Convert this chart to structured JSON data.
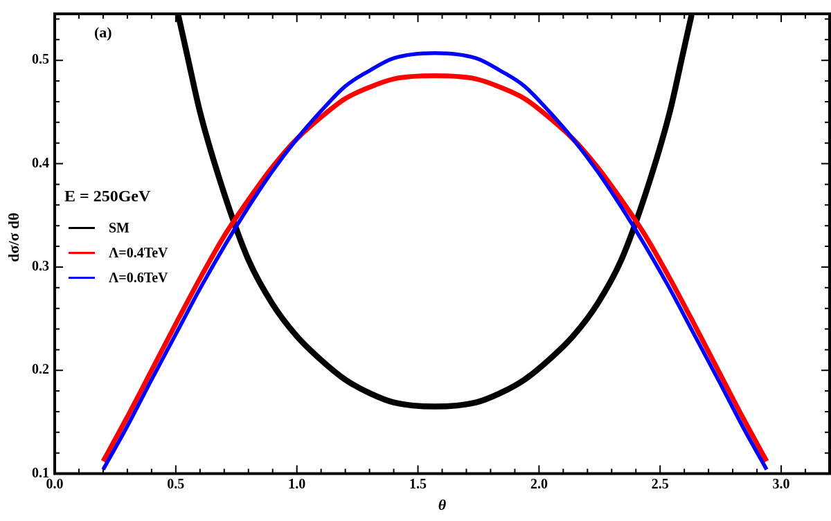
{
  "chart_data": {
    "type": "line",
    "xlabel": "θ",
    "ylabel": "dσ/σ dθ",
    "legend_title": "E = 250GeV",
    "legend": "left",
    "annotations": [
      "(a)"
    ],
    "xlim": [
      0,
      3.2
    ],
    "ylim": [
      0.1,
      0.545
    ],
    "xticks": [
      {
        "value": 0,
        "label": "0.0"
      },
      {
        "value": 0.1,
        "label": null
      },
      {
        "value": 0.2,
        "label": null
      },
      {
        "value": 0.3,
        "label": null
      },
      {
        "value": 0.4,
        "label": null
      },
      {
        "value": 0.5,
        "label": "0.5"
      },
      {
        "value": 0.6,
        "label": null
      },
      {
        "value": 0.7,
        "label": null
      },
      {
        "value": 0.8,
        "label": null
      },
      {
        "value": 0.9,
        "label": null
      },
      {
        "value": 1,
        "label": "1.0"
      },
      {
        "value": 1.1,
        "label": null
      },
      {
        "value": 1.2,
        "label": null
      },
      {
        "value": 1.3,
        "label": null
      },
      {
        "value": 1.4,
        "label": null
      },
      {
        "value": 1.5,
        "label": "1.5"
      },
      {
        "value": 1.6,
        "label": null
      },
      {
        "value": 1.7,
        "label": null
      },
      {
        "value": 1.8,
        "label": null
      },
      {
        "value": 1.9,
        "label": null
      },
      {
        "value": 2,
        "label": "2.0"
      },
      {
        "value": 2.1,
        "label": null
      },
      {
        "value": 2.2,
        "label": null
      },
      {
        "value": 2.3,
        "label": null
      },
      {
        "value": 2.4,
        "label": null
      },
      {
        "value": 2.5,
        "label": "2.5"
      },
      {
        "value": 2.6,
        "label": null
      },
      {
        "value": 2.7,
        "label": null
      },
      {
        "value": 2.8,
        "label": null
      },
      {
        "value": 2.9,
        "label": null
      },
      {
        "value": 3,
        "label": "3.0"
      },
      {
        "value": 3.1,
        "label": null
      }
    ],
    "yticks": [
      0.1,
      {
        "value": 0.12,
        "label": null
      },
      {
        "value": 0.14,
        "label": null
      },
      {
        "value": 0.16,
        "label": null
      },
      {
        "value": 0.18,
        "label": null
      },
      0.2,
      {
        "value": 0.22,
        "label": null
      },
      {
        "value": 0.24,
        "label": null
      },
      {
        "value": 0.26,
        "label": null
      },
      {
        "value": 0.28,
        "label": null
      },
      0.3,
      {
        "value": 0.32,
        "label": null
      },
      {
        "value": 0.34,
        "label": null
      },
      {
        "value": 0.36,
        "label": null
      },
      {
        "value": 0.38,
        "label": null
      },
      0.4,
      {
        "value": 0.42,
        "label": null
      },
      {
        "value": 0.44,
        "label": null
      },
      {
        "value": 0.46,
        "label": null
      },
      {
        "value": 0.48,
        "label": null
      },
      0.5,
      {
        "value": 0.52,
        "label": null
      },
      {
        "value": 0.54,
        "label": null
      }
    ],
    "marker": "none",
    "line_style": "solid",
    "series": [
      {
        "name": "SM",
        "color": "#000000",
        "x": [
          0.51,
          0.55,
          0.6,
          0.7,
          0.8,
          0.9,
          1.0,
          1.1,
          1.2,
          1.3,
          1.4,
          1.57,
          1.74,
          1.84,
          1.94,
          2.04,
          2.14,
          2.24,
          2.34,
          2.44,
          2.54,
          2.59,
          2.63
        ],
        "values": [
          0.544,
          0.502,
          0.45,
          0.371,
          0.307,
          0.264,
          0.233,
          0.21,
          0.191,
          0.178,
          0.169,
          0.165,
          0.169,
          0.178,
          0.191,
          0.21,
          0.233,
          0.264,
          0.307,
          0.371,
          0.45,
          0.502,
          0.544
        ]
      },
      {
        "name": "Λ=0.4TeV",
        "color": "#ff0000",
        "x": [
          0.2,
          0.3,
          0.4,
          0.5,
          0.6,
          0.7,
          0.8,
          0.9,
          1.0,
          1.1,
          1.2,
          1.3,
          1.4,
          1.57,
          1.74,
          1.84,
          1.94,
          2.04,
          2.14,
          2.24,
          2.34,
          2.44,
          2.54,
          2.64,
          2.74,
          2.84,
          2.94
        ],
        "values": [
          0.112,
          0.155,
          0.2,
          0.245,
          0.289,
          0.33,
          0.365,
          0.397,
          0.424,
          0.445,
          0.463,
          0.474,
          0.482,
          0.485,
          0.482,
          0.474,
          0.463,
          0.445,
          0.424,
          0.397,
          0.365,
          0.33,
          0.289,
          0.245,
          0.2,
          0.155,
          0.112
        ]
      },
      {
        "name": "Λ=0.6TeV",
        "color": "#0000ff",
        "x": [
          0.2,
          0.3,
          0.4,
          0.5,
          0.6,
          0.7,
          0.8,
          0.9,
          1.0,
          1.1,
          1.2,
          1.3,
          1.4,
          1.57,
          1.74,
          1.84,
          1.94,
          2.04,
          2.14,
          2.24,
          2.34,
          2.44,
          2.54,
          2.64,
          2.74,
          2.84,
          2.94
        ],
        "values": [
          0.104,
          0.146,
          0.191,
          0.235,
          0.279,
          0.32,
          0.358,
          0.393,
          0.424,
          0.451,
          0.475,
          0.49,
          0.502,
          0.507,
          0.502,
          0.49,
          0.475,
          0.451,
          0.424,
          0.393,
          0.358,
          0.32,
          0.279,
          0.235,
          0.191,
          0.146,
          0.104
        ]
      }
    ]
  }
}
